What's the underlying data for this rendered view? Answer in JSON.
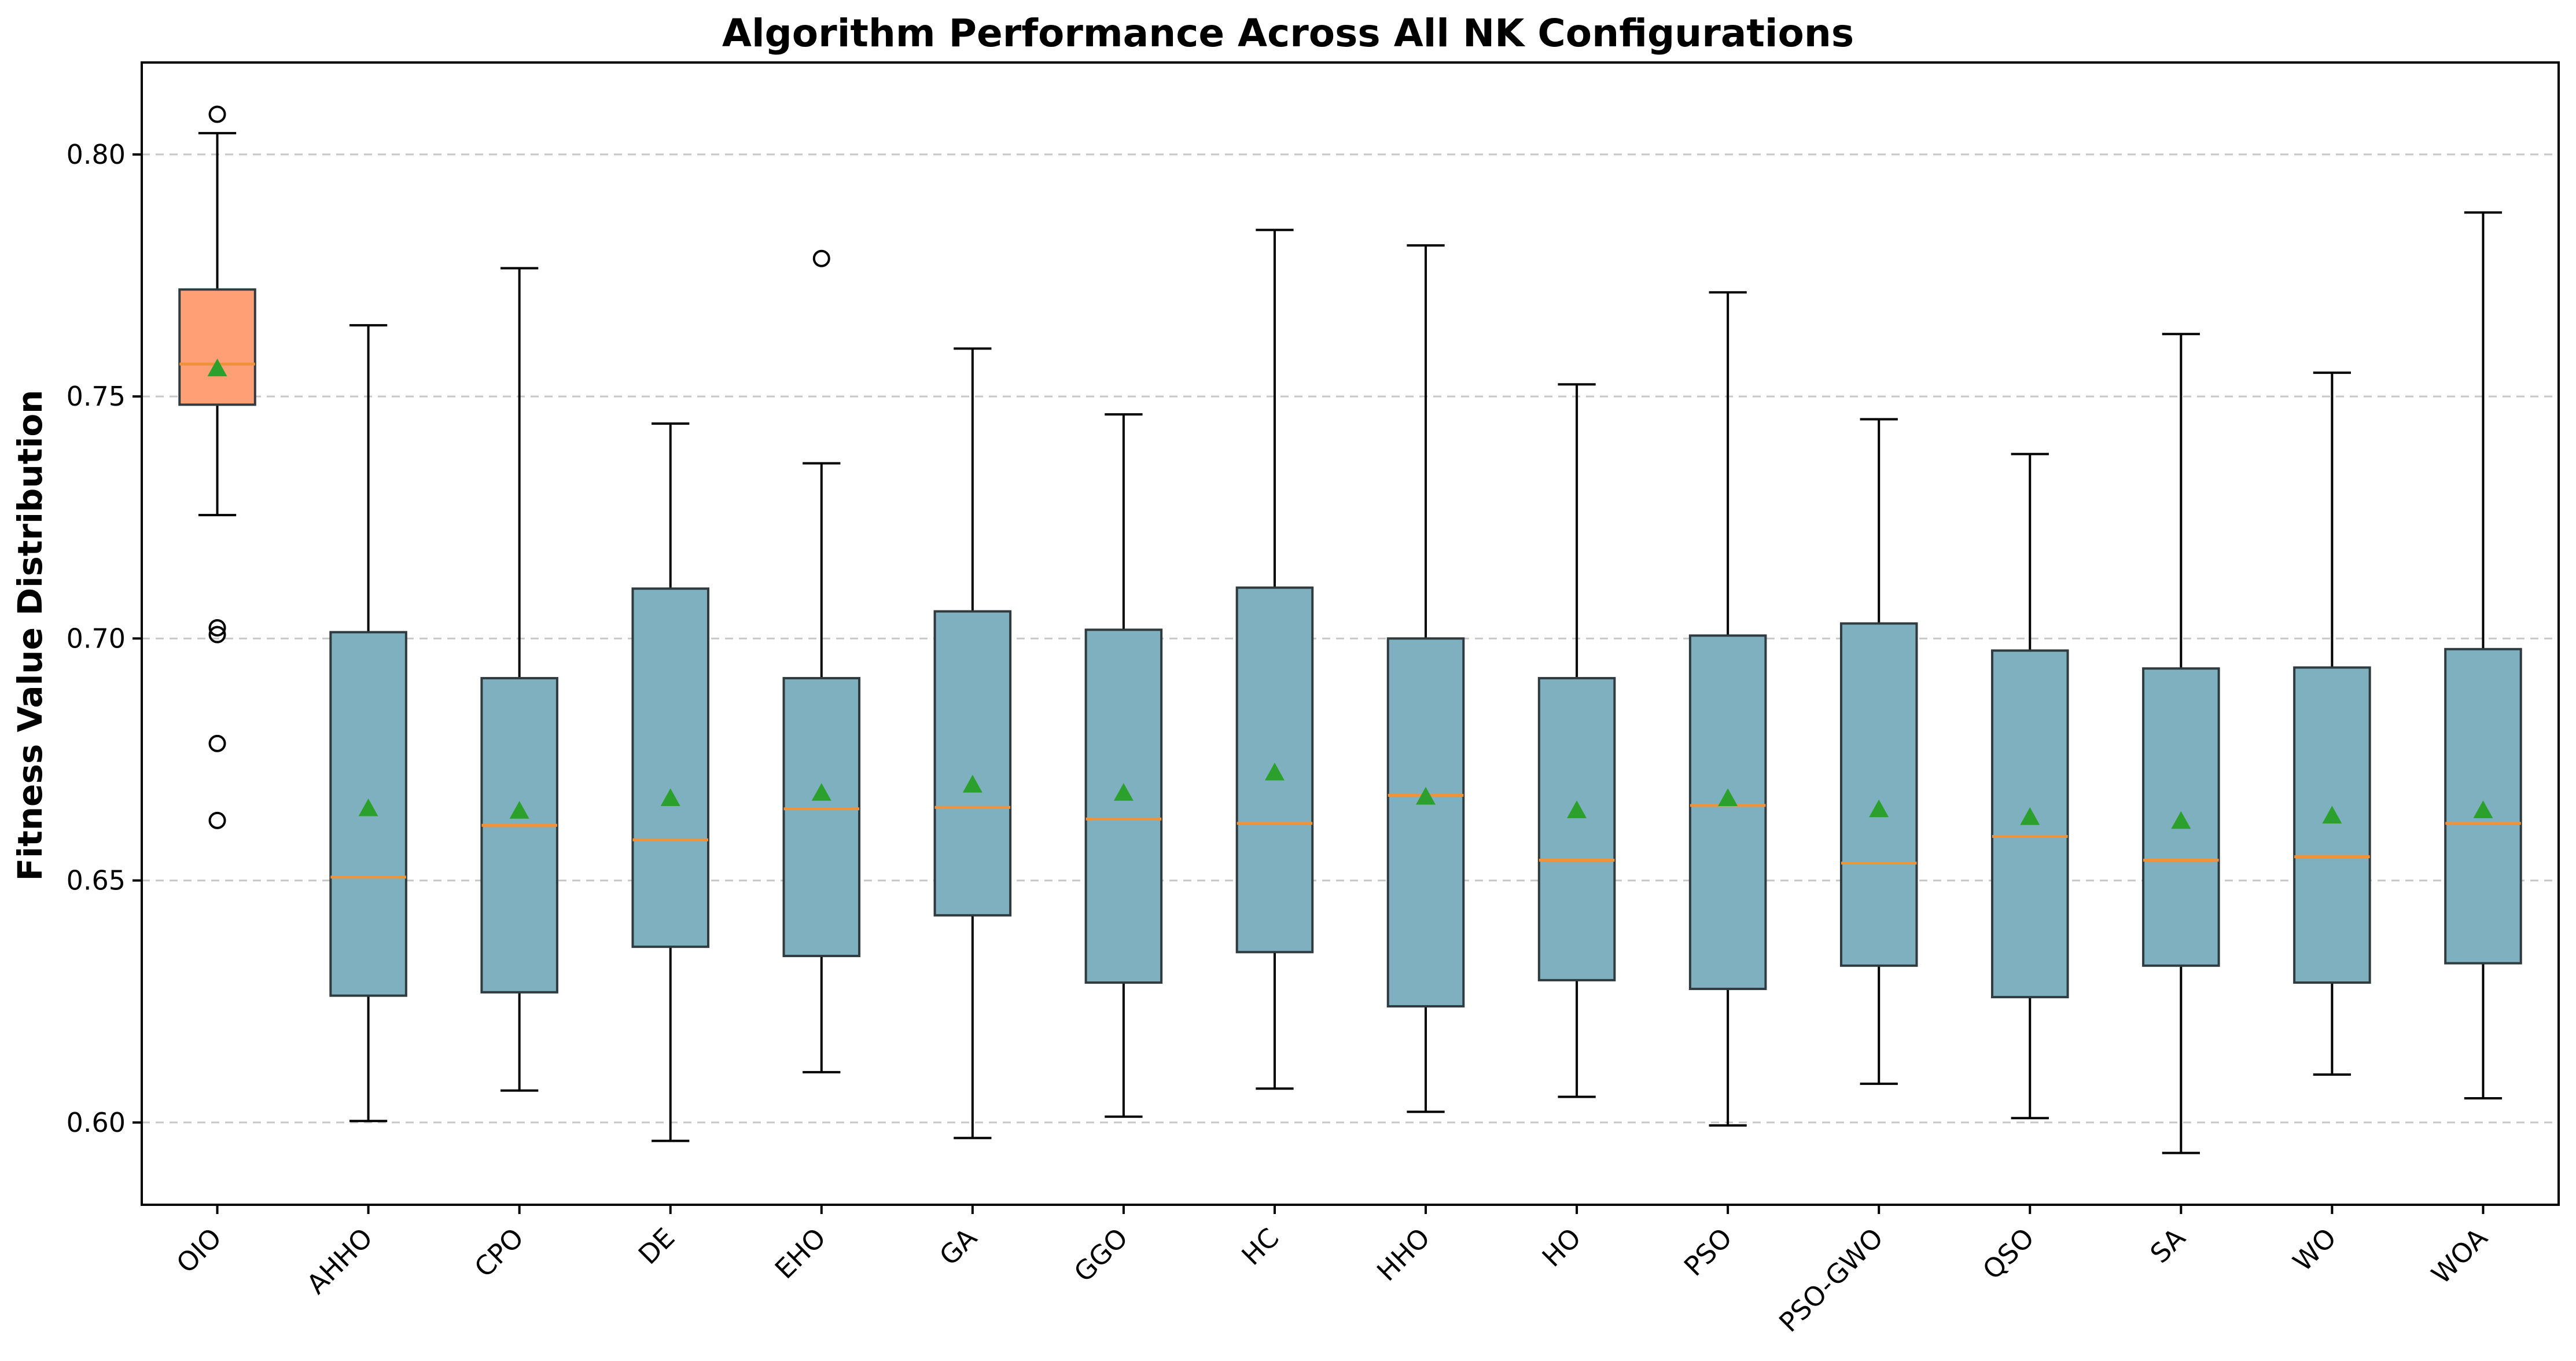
{
  "chart_data": {
    "type": "box",
    "title": "Algorithm Performance Across All NK Configurations",
    "xlabel": "",
    "ylabel": "Fitness Value Distribution",
    "ylim": [
      0.583,
      0.819
    ],
    "yticks": [
      0.6,
      0.65,
      0.7,
      0.75,
      0.8
    ],
    "ytick_labels": [
      "0.60",
      "0.65",
      "0.70",
      "0.75",
      "0.80"
    ],
    "grid": "y, dashed",
    "colors": {
      "highlight_box": "#ff9f76",
      "box": "#7fb0bf",
      "median": "#f0923a",
      "mean_marker": "#2ca02c"
    },
    "series": [
      {
        "category": "OIO",
        "whislo": 0.7255,
        "q1": 0.7483,
        "med": 0.7567,
        "q3": 0.7721,
        "whishi": 0.8044,
        "mean": 0.7558,
        "fliers": [
          0.8083,
          0.7022,
          0.7008,
          0.6783,
          0.6624
        ],
        "highlight": true
      },
      {
        "category": "AHHO",
        "whislo": 0.6003,
        "q1": 0.6262,
        "med": 0.6507,
        "q3": 0.7013,
        "whishi": 0.7647,
        "mean": 0.6649,
        "fliers": []
      },
      {
        "category": "CPO",
        "whislo": 0.6066,
        "q1": 0.6269,
        "med": 0.6614,
        "q3": 0.6918,
        "whishi": 0.7765,
        "mean": 0.6644,
        "fliers": []
      },
      {
        "category": "DE",
        "whislo": 0.5962,
        "q1": 0.6363,
        "med": 0.6584,
        "q3": 0.7103,
        "whishi": 0.7444,
        "mean": 0.667,
        "fliers": []
      },
      {
        "category": "EHO",
        "whislo": 0.6104,
        "q1": 0.6344,
        "med": 0.6648,
        "q3": 0.6918,
        "whishi": 0.7362,
        "mean": 0.6681,
        "fliers": [
          0.7785
        ]
      },
      {
        "category": "GA",
        "whislo": 0.5968,
        "q1": 0.6428,
        "med": 0.6651,
        "q3": 0.7056,
        "whishi": 0.7599,
        "mean": 0.6698,
        "fliers": []
      },
      {
        "category": "GGO",
        "whislo": 0.6012,
        "q1": 0.6289,
        "med": 0.6627,
        "q3": 0.7018,
        "whishi": 0.7463,
        "mean": 0.6681,
        "fliers": []
      },
      {
        "category": "HC",
        "whislo": 0.607,
        "q1": 0.6352,
        "med": 0.6618,
        "q3": 0.7105,
        "whishi": 0.7844,
        "mean": 0.6723,
        "fliers": []
      },
      {
        "category": "HHO",
        "whislo": 0.6022,
        "q1": 0.624,
        "med": 0.6676,
        "q3": 0.7,
        "whishi": 0.7812,
        "mean": 0.6673,
        "fliers": []
      },
      {
        "category": "HO",
        "whislo": 0.6053,
        "q1": 0.6294,
        "med": 0.6542,
        "q3": 0.6918,
        "whishi": 0.7525,
        "mean": 0.6645,
        "fliers": []
      },
      {
        "category": "PSO",
        "whislo": 0.5994,
        "q1": 0.6276,
        "med": 0.6655,
        "q3": 0.7006,
        "whishi": 0.7715,
        "mean": 0.667,
        "fliers": []
      },
      {
        "category": "PSO-GWO",
        "whislo": 0.608,
        "q1": 0.6324,
        "med": 0.6536,
        "q3": 0.7031,
        "whishi": 0.7453,
        "mean": 0.6647,
        "fliers": []
      },
      {
        "category": "QSO",
        "whislo": 0.6009,
        "q1": 0.6259,
        "med": 0.6591,
        "q3": 0.6975,
        "whishi": 0.7381,
        "mean": 0.6631,
        "fliers": []
      },
      {
        "category": "SA",
        "whislo": 0.5937,
        "q1": 0.6324,
        "med": 0.6542,
        "q3": 0.6938,
        "whishi": 0.7629,
        "mean": 0.6623,
        "fliers": []
      },
      {
        "category": "WO",
        "whislo": 0.6099,
        "q1": 0.6289,
        "med": 0.6549,
        "q3": 0.694,
        "whishi": 0.7549,
        "mean": 0.6634,
        "fliers": []
      },
      {
        "category": "WOA",
        "whislo": 0.605,
        "q1": 0.6329,
        "med": 0.6618,
        "q3": 0.6978,
        "whishi": 0.788,
        "mean": 0.6645,
        "fliers": []
      }
    ]
  }
}
